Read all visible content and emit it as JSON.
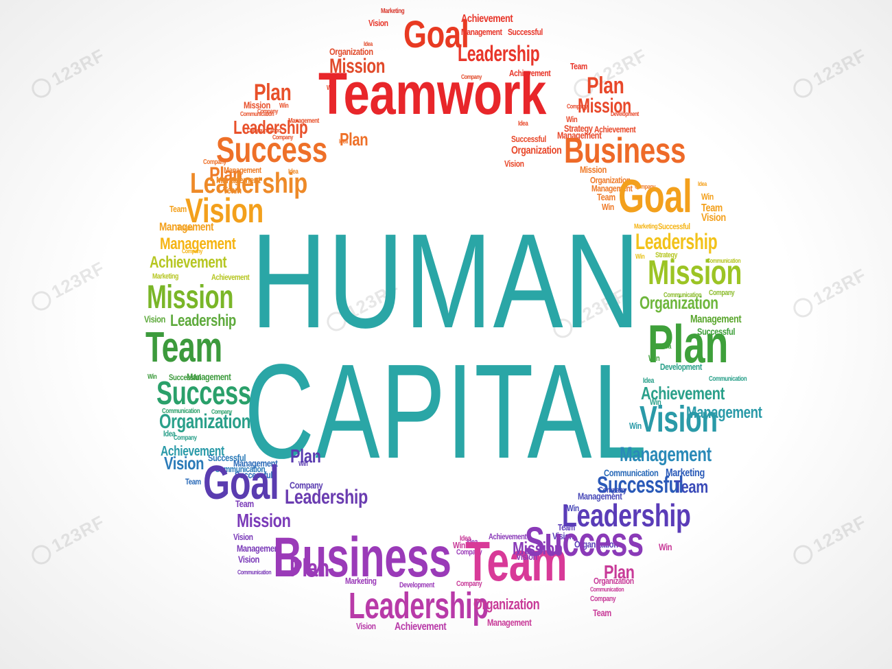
{
  "title": {
    "line1": "HUMAN",
    "line2": "CAPITAL",
    "color": "#2aa6a6"
  },
  "watermark": {
    "text": "123RF"
  },
  "words": [
    {
      "t": "Marketing",
      "c": "#d8352a"
    },
    {
      "t": "Vision",
      "c": "#e8362a"
    },
    {
      "t": "Goal",
      "c": "#e83a22"
    },
    {
      "t": "Achievement",
      "c": "#e8362a"
    },
    {
      "t": "Management",
      "c": "#e8362a"
    },
    {
      "t": "Successful",
      "c": "#e8362a"
    },
    {
      "t": "Leadership",
      "c": "#e8362a"
    },
    {
      "t": "Team",
      "c": "#e8362a"
    },
    {
      "t": "Achievement",
      "c": "#e8362a"
    },
    {
      "t": "Organization",
      "c": "#e14a2a"
    },
    {
      "t": "Mission",
      "c": "#e14a2a"
    },
    {
      "t": "Company",
      "c": "#e14a2a"
    },
    {
      "t": "Idea",
      "c": "#e14a2a"
    },
    {
      "t": "Win",
      "c": "#e14a2a"
    },
    {
      "t": "Teamwork",
      "c": "#e8262a"
    },
    {
      "t": "Plan",
      "c": "#e8502a"
    },
    {
      "t": "Win",
      "c": "#e8502a"
    },
    {
      "t": "Mission",
      "c": "#e8502a"
    },
    {
      "t": "Communication",
      "c": "#e8502a"
    },
    {
      "t": "Company",
      "c": "#e8502a"
    },
    {
      "t": "Leadership",
      "c": "#e8502a"
    },
    {
      "t": "Management",
      "c": "#e8502a"
    },
    {
      "t": "Communication",
      "c": "#e8502a"
    },
    {
      "t": "Company",
      "c": "#e8502a"
    },
    {
      "t": "Plan",
      "c": "#e8482a"
    },
    {
      "t": "Mission",
      "c": "#e8482a"
    },
    {
      "t": "Company",
      "c": "#e8482a"
    },
    {
      "t": "Development",
      "c": "#e8482a"
    },
    {
      "t": "Win",
      "c": "#e8482a"
    },
    {
      "t": "Idea",
      "c": "#e8482a"
    },
    {
      "t": "Strategy",
      "c": "#e8482a"
    },
    {
      "t": "Achievement",
      "c": "#e8482a"
    },
    {
      "t": "Successful",
      "c": "#e8482a"
    },
    {
      "t": "Organization",
      "c": "#e8482a"
    },
    {
      "t": "Vision",
      "c": "#e8482a"
    },
    {
      "t": "Management",
      "c": "#e8482a"
    },
    {
      "t": "Business",
      "c": "#ee6a28"
    },
    {
      "t": "Success",
      "c": "#ee7028"
    },
    {
      "t": "Plan",
      "c": "#ee7028"
    },
    {
      "t": "Idea",
      "c": "#ee7028"
    },
    {
      "t": "Company",
      "c": "#ee7028"
    },
    {
      "t": "Plan",
      "c": "#ee7c28"
    },
    {
      "t": "Management",
      "c": "#ee7c28"
    },
    {
      "t": "Leadership",
      "c": "#ee8a28"
    },
    {
      "t": "Idea",
      "c": "#ee8a28"
    },
    {
      "t": "Management",
      "c": "#ee8a28"
    },
    {
      "t": "Team",
      "c": "#ee8a28"
    },
    {
      "t": "Mission",
      "c": "#ef7a28"
    },
    {
      "t": "Organization",
      "c": "#ef7a28"
    },
    {
      "t": "Management",
      "c": "#ef7a28"
    },
    {
      "t": "Company",
      "c": "#ef7a28"
    },
    {
      "t": "Team",
      "c": "#ef7a28"
    },
    {
      "t": "Win",
      "c": "#ef7a28"
    },
    {
      "t": "Goal",
      "c": "#f3a01c"
    },
    {
      "t": "Idea",
      "c": "#f3a01c"
    },
    {
      "t": "Win",
      "c": "#f3a01c"
    },
    {
      "t": "Team",
      "c": "#f3a01c"
    },
    {
      "t": "Vision",
      "c": "#f3a01c"
    },
    {
      "t": "Vision",
      "c": "#f3a01c"
    },
    {
      "t": "Team",
      "c": "#f3a01c"
    },
    {
      "t": "Management",
      "c": "#f3a01c"
    },
    {
      "t": "Team",
      "c": "#f3a01c"
    },
    {
      "t": "Management",
      "c": "#f5b414"
    },
    {
      "t": "Company",
      "c": "#f5b414"
    },
    {
      "t": "Achievement",
      "c": "#b6c622"
    },
    {
      "t": "Marketing",
      "c": "#b6c622"
    },
    {
      "t": "Achievement",
      "c": "#b6c622"
    },
    {
      "t": "Marketing",
      "c": "#f5b414"
    },
    {
      "t": "Successful",
      "c": "#f5b414"
    },
    {
      "t": "Leadership",
      "c": "#f2c21a"
    },
    {
      "t": "Win",
      "c": "#e8c21a"
    },
    {
      "t": "Strategy",
      "c": "#b6c622"
    },
    {
      "t": "Communication",
      "c": "#b6c622"
    },
    {
      "t": "Mission",
      "c": "#9cc424"
    },
    {
      "t": "Communication",
      "c": "#8cbc2c"
    },
    {
      "t": "Company",
      "c": "#8cbc2c"
    },
    {
      "t": "Organization",
      "c": "#6eb63c"
    },
    {
      "t": "Mission",
      "c": "#7ab628"
    },
    {
      "t": "Vision",
      "c": "#5eaa3c"
    },
    {
      "t": "Leadership",
      "c": "#5eaa3c"
    },
    {
      "t": "Team",
      "c": "#3c9a3c"
    },
    {
      "t": "Win",
      "c": "#3c9a3c"
    },
    {
      "t": "Successful",
      "c": "#3c9a3c"
    },
    {
      "t": "Management",
      "c": "#3c9a3c"
    },
    {
      "t": "Success",
      "c": "#2aa06a"
    },
    {
      "t": "Communication",
      "c": "#2aa06a"
    },
    {
      "t": "Company",
      "c": "#2aa06a"
    },
    {
      "t": "Organization",
      "c": "#2aa08a"
    },
    {
      "t": "Idea",
      "c": "#2aa08a"
    },
    {
      "t": "Company",
      "c": "#2aa08a"
    },
    {
      "t": "Achievement",
      "c": "#2a9aa8"
    },
    {
      "t": "Management",
      "c": "#5aa62e"
    },
    {
      "t": "Plan",
      "c": "#3ea03a"
    },
    {
      "t": "Successful",
      "c": "#3ea03a"
    },
    {
      "t": "Idea",
      "c": "#3ea03a"
    },
    {
      "t": "Win",
      "c": "#3ea03a"
    },
    {
      "t": "Development",
      "c": "#2aa08a"
    },
    {
      "t": "Communication",
      "c": "#2aa08a"
    },
    {
      "t": "Idea",
      "c": "#2aa08a"
    },
    {
      "t": "Achievement",
      "c": "#2aa08a"
    },
    {
      "t": "Win",
      "c": "#2aa08a"
    },
    {
      "t": "Vision",
      "c": "#2a9aa8"
    },
    {
      "t": "Management",
      "c": "#2a9aa8"
    },
    {
      "t": "Win",
      "c": "#2a9aa8"
    },
    {
      "t": "Vision",
      "c": "#2a7ab8"
    },
    {
      "t": "Successful",
      "c": "#2a7ab8"
    },
    {
      "t": "Communication",
      "c": "#2a7ab8"
    },
    {
      "t": "Management",
      "c": "#2a6ab8"
    },
    {
      "t": "Successful",
      "c": "#2a6ab8"
    },
    {
      "t": "Team",
      "c": "#2a6ab8"
    },
    {
      "t": "Goal",
      "c": "#5a3cb0"
    },
    {
      "t": "Plan",
      "c": "#5a3cb0"
    },
    {
      "t": "Win",
      "c": "#5a3cb0"
    },
    {
      "t": "Company",
      "c": "#5a3cb0"
    },
    {
      "t": "Leadership",
      "c": "#6a3cb0"
    },
    {
      "t": "Management",
      "c": "#2a8ab8"
    },
    {
      "t": "Communication",
      "c": "#2a6ab8"
    },
    {
      "t": "Successful",
      "c": "#2a5ab8"
    },
    {
      "t": "Marketing",
      "c": "#2a5ab8"
    },
    {
      "t": "Team",
      "c": "#3a4ab8"
    },
    {
      "t": "Company",
      "c": "#3a4ab8"
    },
    {
      "t": "Management",
      "c": "#4a4ab8"
    },
    {
      "t": "Win",
      "c": "#4a4ab8"
    },
    {
      "t": "Leadership",
      "c": "#5a3cb8"
    },
    {
      "t": "Team",
      "c": "#5a3cb8"
    },
    {
      "t": "Vision",
      "c": "#5a3cb8"
    },
    {
      "t": "Organization",
      "c": "#5a3cb8"
    },
    {
      "t": "Team",
      "c": "#7a3ab8"
    },
    {
      "t": "Mission",
      "c": "#7a3ab8"
    },
    {
      "t": "Vision",
      "c": "#7a3ab8"
    },
    {
      "t": "Management",
      "c": "#7a3ab8"
    },
    {
      "t": "Vision",
      "c": "#7a3ab8"
    },
    {
      "t": "Communication",
      "c": "#7a3ab8"
    },
    {
      "t": "Business",
      "c": "#9a3ab8"
    },
    {
      "t": "Plan",
      "c": "#9a3ab8"
    },
    {
      "t": "Idea",
      "c": "#9a3ab8"
    },
    {
      "t": "Company",
      "c": "#9a3ab8"
    },
    {
      "t": "Marketing",
      "c": "#9a3ab8"
    },
    {
      "t": "Development",
      "c": "#9a3ab8"
    },
    {
      "t": "Leadership",
      "c": "#b83aa8"
    },
    {
      "t": "Vision",
      "c": "#b83aa8"
    },
    {
      "t": "Achievement",
      "c": "#b83aa8"
    },
    {
      "t": "Company",
      "c": "#c83a98"
    },
    {
      "t": "Idea",
      "c": "#c83a98"
    },
    {
      "t": "Win",
      "c": "#c83a98"
    },
    {
      "t": "Team",
      "c": "#d83a98"
    },
    {
      "t": "Organization",
      "c": "#c83a98"
    },
    {
      "t": "Management",
      "c": "#c83a98"
    },
    {
      "t": "Mission",
      "c": "#8a3ab8"
    },
    {
      "t": "Achievement",
      "c": "#8a3ab8"
    },
    {
      "t": "Vision",
      "c": "#8a3ab8"
    },
    {
      "t": "Success",
      "c": "#8a3ab8"
    },
    {
      "t": "Plan",
      "c": "#c83a98"
    },
    {
      "t": "Organization",
      "c": "#c83a98"
    },
    {
      "t": "Communication",
      "c": "#c83a98"
    },
    {
      "t": "Company",
      "c": "#c83a98"
    },
    {
      "t": "Team",
      "c": "#c83a98"
    },
    {
      "t": "Win",
      "c": "#c83a98"
    }
  ]
}
